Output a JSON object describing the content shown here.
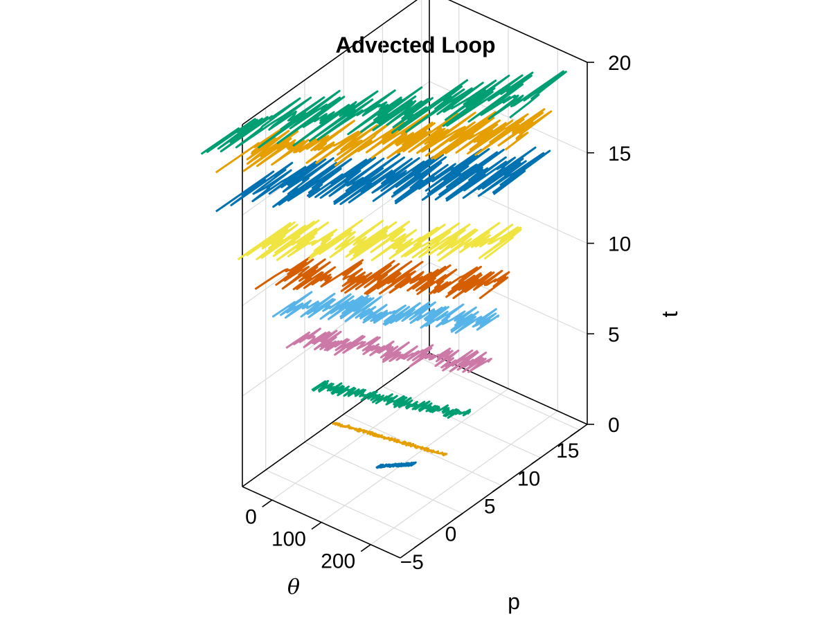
{
  "chart_data": {
    "type": "line3d",
    "title": "Advected Loop",
    "axes": {
      "theta": {
        "label": "θ",
        "ticks": [
          "0",
          "100",
          "200"
        ],
        "tick_values": [
          0,
          100,
          200
        ],
        "range": [
          -60,
          260
        ]
      },
      "p": {
        "label": "p",
        "ticks": [
          "−5",
          "0",
          "5",
          "10",
          "15"
        ],
        "tick_values": [
          -5,
          0,
          5,
          10,
          15
        ],
        "range": [
          -8,
          16
        ]
      },
      "t": {
        "label": "t",
        "ticks": [
          "0",
          "5",
          "10",
          "15",
          "20"
        ],
        "tick_values": [
          0,
          5,
          10,
          15,
          20
        ],
        "range": [
          0,
          20
        ]
      }
    },
    "grid": true,
    "series": [
      {
        "t": 1.0,
        "color": "#0072b2",
        "theta_range": [
          105,
          145
        ],
        "p_range": [
          -1,
          1
        ],
        "spread": 0.2
      },
      {
        "t": 2.3,
        "color": "#e69f00",
        "theta_range": [
          15,
          210
        ],
        "p_range": [
          -1,
          1
        ],
        "spread": 0.15
      },
      {
        "t": 4.5,
        "color": "#009e73",
        "theta_range": [
          0,
          235
        ],
        "p_range": [
          -2,
          2
        ],
        "spread": 0.6
      },
      {
        "t": 7.2,
        "color": "#cc79a7",
        "theta_range": [
          -20,
          255
        ],
        "p_range": [
          -3,
          3
        ],
        "spread": 1.3
      },
      {
        "t": 9.3,
        "color": "#56b4e9",
        "theta_range": [
          -25,
          255
        ],
        "p_range": [
          -4,
          4
        ],
        "spread": 1.6
      },
      {
        "t": 11.2,
        "color": "#d55e00",
        "theta_range": [
          -35,
          260
        ],
        "p_range": [
          -5,
          5
        ],
        "spread": 2.0
      },
      {
        "t": 13.2,
        "color": "#f0e442",
        "theta_range": [
          -45,
          260
        ],
        "p_range": [
          -6,
          6
        ],
        "spread": 2.4
      },
      {
        "t": 16.4,
        "color": "#0072b2",
        "theta_range": [
          -55,
          260
        ],
        "p_range": [
          -7,
          8
        ],
        "spread": 3.2
      },
      {
        "t": 18.4,
        "color": "#e69f00",
        "theta_range": [
          -60,
          260
        ],
        "p_range": [
          -7,
          9
        ],
        "spread": 3.0
      },
      {
        "t": 20.0,
        "color": "#009e73",
        "theta_range": [
          -60,
          260
        ],
        "p_range": [
          -8,
          10
        ],
        "spread": 3.6
      }
    ]
  }
}
